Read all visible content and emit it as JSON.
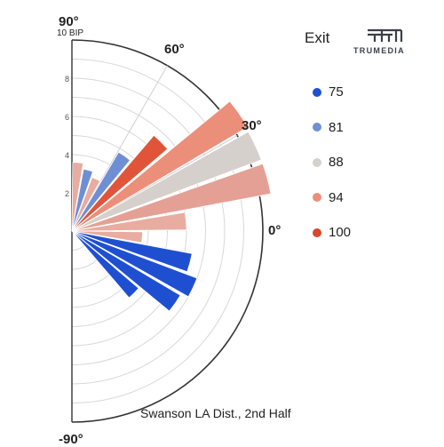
{
  "chart_data": {
    "type": "polar-bar",
    "caption": "Swanson LA Dist., 2nd Half",
    "radial_max": 10,
    "radial_unit_label": "10 BIP",
    "radial_ticks": [
      2,
      4,
      6,
      8
    ],
    "angle_labels": [
      "90°",
      "60°",
      "30°",
      "0°",
      "-90°"
    ],
    "angle_range": [
      -90,
      90
    ],
    "legend": {
      "title": "Exit",
      "items": [
        {
          "label": "75",
          "color": "#1f4fd1"
        },
        {
          "label": "81",
          "color": "#6f8fd4"
        },
        {
          "label": "88",
          "color": "#d6d0cc"
        },
        {
          "label": "94",
          "color": "#ec8f7a"
        },
        {
          "label": "100",
          "color": "#d9472c"
        }
      ]
    },
    "bars": [
      {
        "angle": 85,
        "value": 3.6,
        "color": "#e8aca0"
      },
      {
        "angle": 75,
        "value": 3.3,
        "color": "#6f8fd4"
      },
      {
        "angle": 65,
        "value": 3.0,
        "color": "#e8aca0"
      },
      {
        "angle": 55,
        "value": 4.8,
        "color": "#6f8fd4"
      },
      {
        "angle": 45,
        "value": 6.6,
        "color": "#e0553a"
      },
      {
        "angle": 35,
        "value": 10.7,
        "color": "#ec8f7a"
      },
      {
        "angle": 25,
        "value": 10.6,
        "color": "#d6d0cc"
      },
      {
        "angle": 15,
        "value": 10.6,
        "color": "#e5a095"
      },
      {
        "angle": 5,
        "value": 6.0,
        "color": "#e8aca0"
      },
      {
        "angle": -5,
        "value": 3.7,
        "color": "#e8aca0"
      },
      {
        "angle": -15,
        "value": 6.4,
        "color": "#1f4fd1"
      },
      {
        "angle": -25,
        "value": 7.0,
        "color": "#1f4fd1"
      },
      {
        "angle": -35,
        "value": 6.6,
        "color": "#1f4fd1"
      },
      {
        "angle": -45,
        "value": 4.6,
        "color": "#1f4fd1"
      }
    ]
  },
  "logo": {
    "text": "TRUMEDIA"
  }
}
